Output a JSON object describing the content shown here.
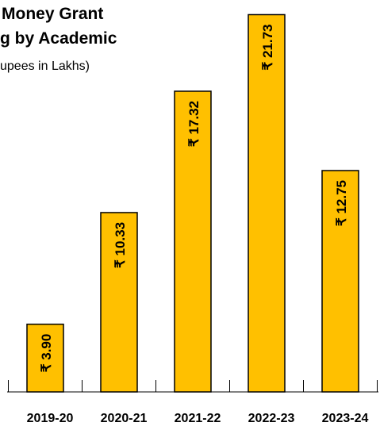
{
  "chart_data": {
    "type": "bar",
    "title_lines": [
      "Money Grant",
      "g by Academic"
    ],
    "subtitle": "upees in Lakhs)",
    "categories": [
      "2019-20",
      "2020-21",
      "2021-22",
      "2022-23",
      "2023-24"
    ],
    "values": [
      3.9,
      10.33,
      17.32,
      21.73,
      12.75
    ],
    "data_labels": [
      "₹ 3.90",
      "₹ 10.33",
      "₹ 17.32",
      "₹ 21.73",
      "₹ 12.75"
    ],
    "xlabel": "",
    "ylabel": "",
    "ylim": [
      0,
      22.3
    ],
    "grid": false,
    "legend": "none",
    "colors": {
      "bar_fill": "#FFC000",
      "bar_stroke": "#000000",
      "axis": "#000000",
      "label": "#000000"
    }
  }
}
